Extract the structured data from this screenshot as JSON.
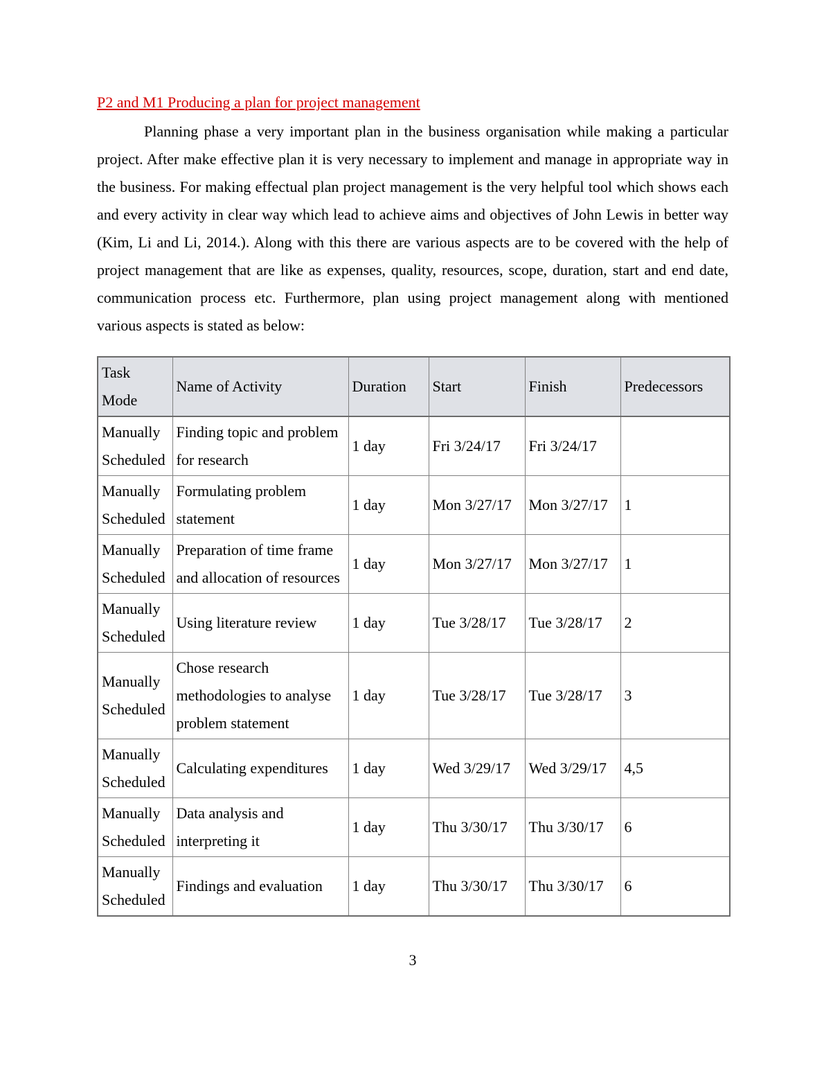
{
  "document": {
    "heading": "P2 and M1 Producing a plan for project management",
    "paragraph": "Planning phase a very important plan in the business organisation while making a particular project. After make effective plan it is very necessary to implement and manage in appropriate way in the business. For making effectual plan project management is the very helpful tool which shows each and every activity in clear way which lead to achieve aims and objectives of John Lewis in better way (Kim, Li and Li, 2014.). Along with this there are various aspects are to be covered with the help of project management that are like as expenses, quality, resources, scope, duration, start and end date, communication process etc. Furthermore, plan using project management along with mentioned various aspects is stated as below:",
    "page_number": "3",
    "colors": {
      "heading_red": "#d40000",
      "table_header_bg": "#dfe1e6",
      "table_border": "#808080"
    }
  },
  "table": {
    "headers": [
      "Task Mode",
      "Name of Activity",
      "Duration",
      "Start",
      "Finish",
      "Predecessors"
    ],
    "rows": [
      {
        "task_mode": "Manually Scheduled",
        "activity": "Finding topic and problem for research",
        "duration": "1 day",
        "start": "Fri 3/24/17",
        "finish": "Fri 3/24/17",
        "predecessors": ""
      },
      {
        "task_mode": "Manually Scheduled",
        "activity": "Formulating problem statement",
        "duration": "1 day",
        "start": "Mon 3/27/17",
        "finish": "Mon 3/27/17",
        "predecessors": "1"
      },
      {
        "task_mode": "Manually Scheduled",
        "activity": "Preparation of time frame and allocation of resources",
        "duration": "1 day",
        "start": "Mon 3/27/17",
        "finish": "Mon 3/27/17",
        "predecessors": "1"
      },
      {
        "task_mode": "Manually Scheduled",
        "activity": "Using literature review",
        "duration": "1 day",
        "start": "Tue 3/28/17",
        "finish": "Tue 3/28/17",
        "predecessors": "2"
      },
      {
        "task_mode": "Manually Scheduled",
        "activity": "Chose research methodologies to analyse problem statement",
        "duration": "1 day",
        "start": "Tue 3/28/17",
        "finish": "Tue 3/28/17",
        "predecessors": "3"
      },
      {
        "task_mode": "Manually Scheduled",
        "activity": "Calculating expenditures",
        "duration": "1 day",
        "start": "Wed 3/29/17",
        "finish": "Wed 3/29/17",
        "predecessors": "4,5"
      },
      {
        "task_mode": "Manually Scheduled",
        "activity": "Data analysis and interpreting it",
        "duration": "1 day",
        "start": "Thu 3/30/17",
        "finish": "Thu 3/30/17",
        "predecessors": "6"
      },
      {
        "task_mode": "Manually Scheduled",
        "activity": "Findings and evaluation",
        "duration": "1 day",
        "start": "Thu 3/30/17",
        "finish": "Thu 3/30/17",
        "predecessors": "6"
      }
    ]
  }
}
